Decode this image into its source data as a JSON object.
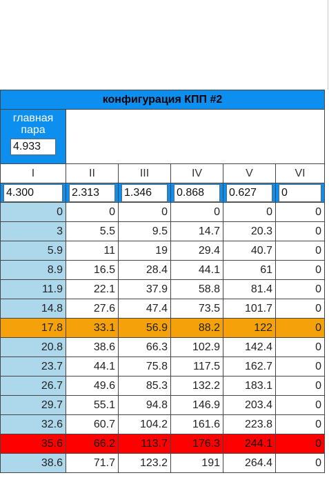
{
  "title": "конфигурация КПП #2",
  "main_pair": {
    "label_line1": "главная",
    "label_line2": "пара",
    "value": "4.933"
  },
  "gears": [
    {
      "name": "I",
      "ratio": "4.300"
    },
    {
      "name": "II",
      "ratio": "2.313"
    },
    {
      "name": "III",
      "ratio": "1.346"
    },
    {
      "name": "IV",
      "ratio": "0.868"
    },
    {
      "name": "V",
      "ratio": "0.627"
    },
    {
      "name": "VI",
      "ratio": "0"
    }
  ],
  "rows": [
    {
      "highlight": "",
      "values": [
        "0",
        "0",
        "0",
        "0",
        "0",
        "0"
      ]
    },
    {
      "highlight": "",
      "values": [
        "3",
        "5.5",
        "9.5",
        "14.7",
        "20.3",
        "0"
      ]
    },
    {
      "highlight": "",
      "values": [
        "5.9",
        "11",
        "19",
        "29.4",
        "40.7",
        "0"
      ]
    },
    {
      "highlight": "",
      "values": [
        "8.9",
        "16.5",
        "28.4",
        "44.1",
        "61",
        "0"
      ]
    },
    {
      "highlight": "",
      "values": [
        "11.9",
        "22.1",
        "37.9",
        "58.8",
        "81.4",
        "0"
      ]
    },
    {
      "highlight": "",
      "values": [
        "14.8",
        "27.6",
        "47.4",
        "73.5",
        "101.7",
        "0"
      ]
    },
    {
      "highlight": "orange",
      "values": [
        "17.8",
        "33.1",
        "56.9",
        "88.2",
        "122",
        "0"
      ]
    },
    {
      "highlight": "",
      "values": [
        "20.8",
        "38.6",
        "66.3",
        "102.9",
        "142.4",
        "0"
      ]
    },
    {
      "highlight": "",
      "values": [
        "23.7",
        "44.1",
        "75.8",
        "117.5",
        "162.7",
        "0"
      ]
    },
    {
      "highlight": "",
      "values": [
        "26.7",
        "49.6",
        "85.3",
        "132.2",
        "183.1",
        "0"
      ]
    },
    {
      "highlight": "",
      "values": [
        "29.7",
        "55.1",
        "94.8",
        "146.9",
        "203.4",
        "0"
      ]
    },
    {
      "highlight": "",
      "values": [
        "32.6",
        "60.7",
        "104.2",
        "161.6",
        "223.8",
        "0"
      ]
    },
    {
      "highlight": "red",
      "values": [
        "35.6",
        "66.2",
        "113.7",
        "176.3",
        "244.1",
        "0"
      ]
    },
    {
      "highlight": "",
      "values": [
        "38.6",
        "71.7",
        "123.2",
        "191",
        "264.4",
        "0"
      ]
    }
  ],
  "colors": {
    "header_blue": "#0d8ff0",
    "first_col": "#add8ec",
    "orange": "#f5a10a",
    "red": "#ff0000"
  }
}
